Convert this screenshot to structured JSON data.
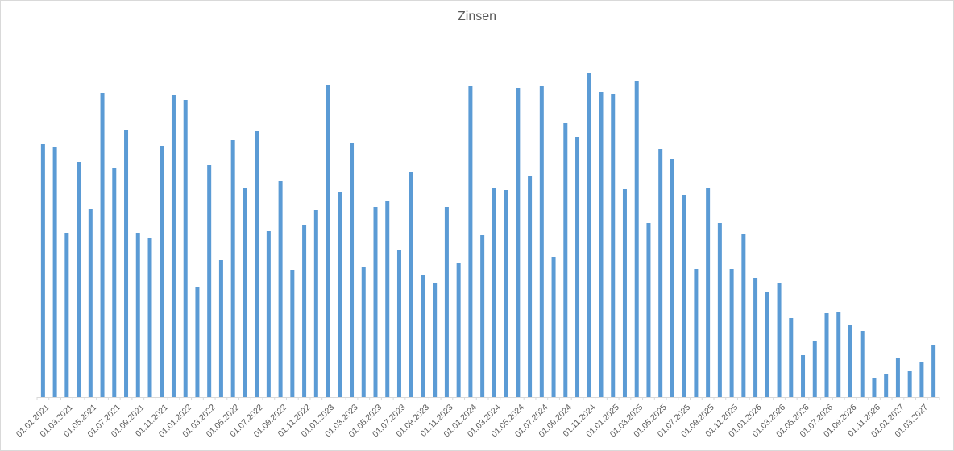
{
  "chart_data": {
    "type": "bar",
    "title": "Zinsen",
    "xlabel": "",
    "ylabel": "",
    "y_axis_visible": false,
    "grid": false,
    "legend": "none",
    "ylim": [
      0,
      410
    ],
    "bar_color": "#5b9bd5",
    "categories": [
      "01.01.2021",
      "01.02.2021",
      "01.03.2021",
      "01.04.2021",
      "01.05.2021",
      "01.06.2021",
      "01.07.2021",
      "01.08.2021",
      "01.09.2021",
      "01.10.2021",
      "01.11.2021",
      "01.12.2021",
      "01.01.2022",
      "01.02.2022",
      "01.03.2022",
      "01.04.2022",
      "01.05.2022",
      "01.06.2022",
      "01.07.2022",
      "01.08.2022",
      "01.09.2022",
      "01.10.2022",
      "01.11.2022",
      "01.12.2022",
      "01.01.2023",
      "01.02.2023",
      "01.03.2023",
      "01.04.2023",
      "01.05.2023",
      "01.06.2023",
      "01.07.2023",
      "01.08.2023",
      "01.09.2023",
      "01.10.2023",
      "01.11.2023",
      "01.12.2023",
      "01.01.2024",
      "01.02.2024",
      "01.03.2024",
      "01.04.2024",
      "01.05.2024",
      "01.06.2024",
      "01.07.2024",
      "01.08.2024",
      "01.09.2024",
      "01.10.2024",
      "01.11.2024",
      "01.12.2024",
      "01.01.2025",
      "01.02.2025",
      "01.03.2025",
      "01.04.2025",
      "01.05.2025",
      "01.06.2025",
      "01.07.2025",
      "01.08.2025",
      "01.09.2025",
      "01.10.2025",
      "01.11.2025",
      "01.12.2025",
      "01.01.2026",
      "01.02.2026",
      "01.03.2026",
      "01.04.2026",
      "01.05.2026",
      "01.06.2026",
      "01.07.2026",
      "01.08.2026",
      "01.09.2026",
      "01.10.2026",
      "01.11.2026",
      "01.12.2026",
      "01.01.2027",
      "01.02.2027",
      "01.03.2027",
      "01.04.2027"
    ],
    "tick_labels": [
      "01.01.2021",
      "01.03.2021",
      "01.05.2021",
      "01.07.2021",
      "01.09.2021",
      "01.11.2021",
      "01.01.2022",
      "01.03.2022",
      "01.05.2022",
      "01.07.2022",
      "01.09.2022",
      "01.11.2022",
      "01.01.2023",
      "01.03.2023",
      "01.05.2023",
      "01.07.2023",
      "01.09.2023",
      "01.11.2023",
      "01.01.2024",
      "01.03.2024",
      "01.05.2024",
      "01.07.2024",
      "01.09.2024",
      "01.11.2024",
      "01.01.2025",
      "01.03.2025",
      "01.05.2025",
      "01.07.2025",
      "01.09.2025",
      "01.11.2025",
      "01.01.2026",
      "01.03.2026",
      "01.05.2026",
      "01.07.2026",
      "01.09.2026",
      "01.11.2026",
      "01.01.2027",
      "01.03.2027"
    ],
    "values": [
      314,
      310,
      204,
      292,
      234,
      377,
      285,
      332,
      204,
      198,
      312,
      375,
      369,
      137,
      288,
      170,
      319,
      259,
      330,
      206,
      268,
      158,
      213,
      232,
      387,
      255,
      315,
      161,
      236,
      243,
      182,
      279,
      152,
      142,
      236,
      166,
      386,
      201,
      259,
      257,
      384,
      275,
      386,
      174,
      340,
      323,
      402,
      379,
      376,
      258,
      393,
      216,
      308,
      295,
      251,
      159,
      259,
      216,
      159,
      202,
      148,
      130,
      141,
      98,
      52,
      70,
      104,
      106,
      90,
      82,
      24,
      28,
      48,
      32,
      43,
      65
    ]
  }
}
